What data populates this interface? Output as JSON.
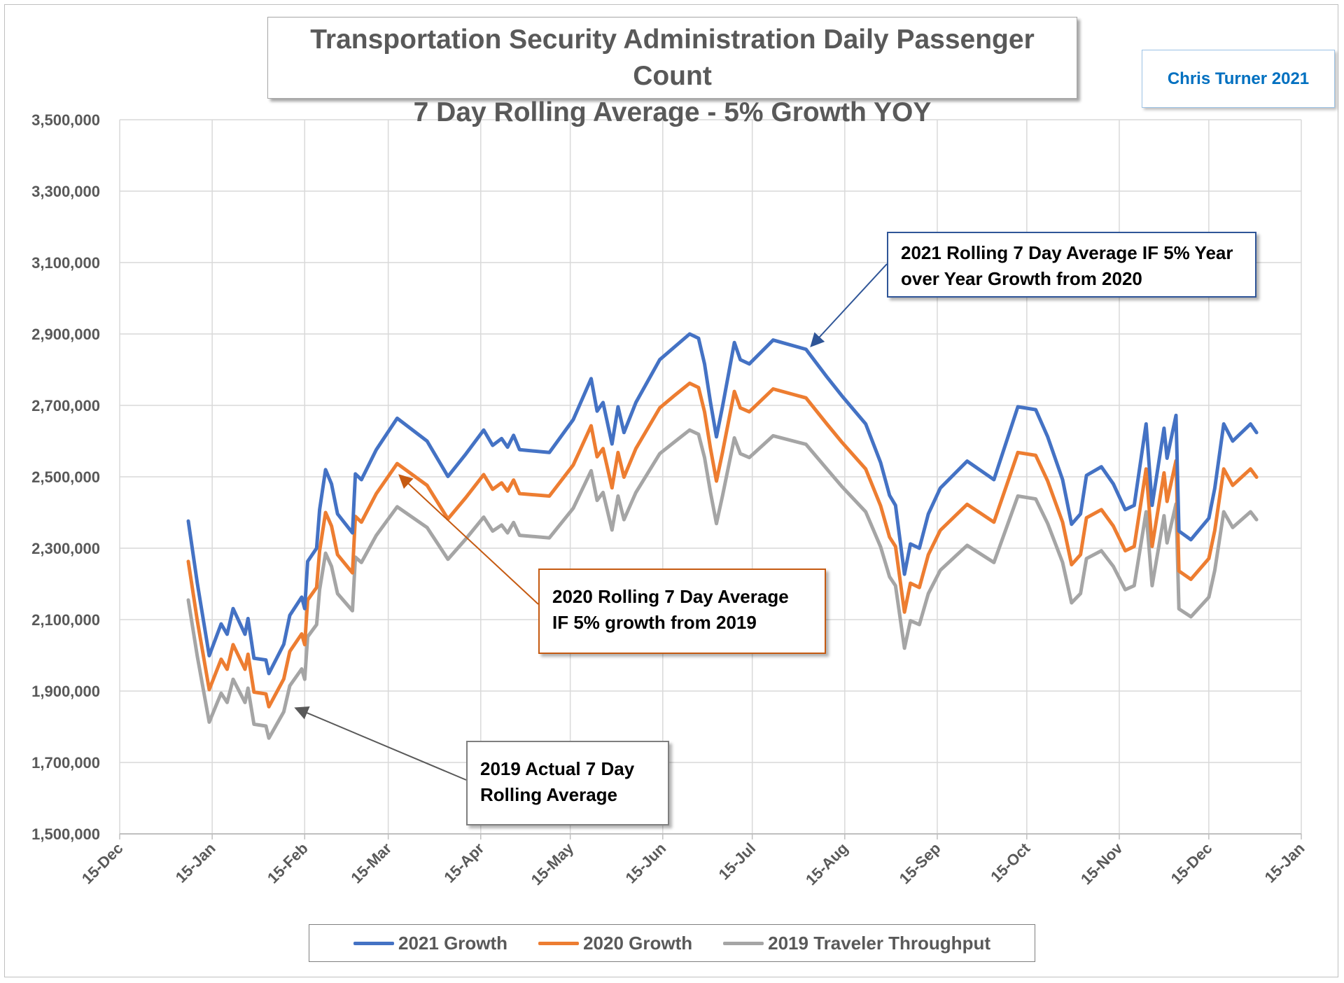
{
  "chart_data": {
    "type": "line",
    "title": "Transportation Security Administration Daily Passenger Count",
    "subtitle": "7 Day Rolling Average - 5% Growth YOY",
    "author_label": "Chris Turner 2021",
    "xlabel": "",
    "ylabel": "",
    "xlim": [
      "2020-12-15",
      "2022-01-15"
    ],
    "ylim": [
      1500000,
      3500000
    ],
    "y_ticks": [
      1500000,
      1700000,
      1900000,
      2100000,
      2300000,
      2500000,
      2700000,
      2900000,
      3100000,
      3300000,
      3500000
    ],
    "y_tick_labels": [
      "1,500,000",
      "1,700,000",
      "1,900,000",
      "2,100,000",
      "2,300,000",
      "2,500,000",
      "2,700,000",
      "2,900,000",
      "3,100,000",
      "3,300,000",
      "3,500,000"
    ],
    "x_ticks": [
      "2020-12-15",
      "2021-01-15",
      "2021-02-15",
      "2021-03-15",
      "2021-04-15",
      "2021-05-15",
      "2021-06-15",
      "2021-07-15",
      "2021-08-15",
      "2021-09-15",
      "2021-10-15",
      "2021-11-15",
      "2021-12-15",
      "2022-01-15"
    ],
    "x_tick_labels": [
      "15-Dec",
      "15-Jan",
      "15-Feb",
      "15-Mar",
      "15-Apr",
      "15-May",
      "15-Jun",
      "15-Jul",
      "15-Aug",
      "15-Sep",
      "15-Oct",
      "15-Nov",
      "15-Dec",
      "15-Jan"
    ],
    "grid": true,
    "legend_position": "bottom",
    "x": [
      "2021-01-07",
      "2021-01-10",
      "2021-01-14",
      "2021-01-18",
      "2021-01-20",
      "2021-01-22",
      "2021-01-26",
      "2021-01-27",
      "2021-01-29",
      "2021-02-02",
      "2021-02-03",
      "2021-02-08",
      "2021-02-10",
      "2021-02-14",
      "2021-02-15",
      "2021-02-16",
      "2021-02-19",
      "2021-02-20",
      "2021-02-22",
      "2021-02-24",
      "2021-02-26",
      "2021-03-03",
      "2021-03-04",
      "2021-03-06",
      "2021-03-11",
      "2021-03-18",
      "2021-03-28",
      "2021-04-04",
      "2021-04-10",
      "2021-04-16",
      "2021-04-19",
      "2021-04-22",
      "2021-04-24",
      "2021-04-26",
      "2021-04-28",
      "2021-05-08",
      "2021-05-16",
      "2021-05-22",
      "2021-05-24",
      "2021-05-26",
      "2021-05-29",
      "2021-05-31",
      "2021-06-02",
      "2021-06-06",
      "2021-06-14",
      "2021-06-19",
      "2021-06-24",
      "2021-06-27",
      "2021-06-29",
      "2021-07-01",
      "2021-07-03",
      "2021-07-05",
      "2021-07-09",
      "2021-07-11",
      "2021-07-14",
      "2021-07-22",
      "2021-08-02",
      "2021-08-09",
      "2021-08-14",
      "2021-08-22",
      "2021-08-27",
      "2021-08-30",
      "2021-09-01",
      "2021-09-04",
      "2021-09-06",
      "2021-09-09",
      "2021-09-12",
      "2021-09-16",
      "2021-09-25",
      "2021-10-04",
      "2021-10-12",
      "2021-10-18",
      "2021-10-22",
      "2021-10-27",
      "2021-10-30",
      "2021-11-02",
      "2021-11-04",
      "2021-11-09",
      "2021-11-13",
      "2021-11-17",
      "2021-11-20",
      "2021-11-24",
      "2021-11-26",
      "2021-11-30",
      "2021-12-01",
      "2021-12-04",
      "2021-12-05",
      "2021-12-09",
      "2021-12-15",
      "2021-12-17",
      "2021-12-20",
      "2021-12-23",
      "2021-12-29",
      "2021-12-31"
    ],
    "series": [
      {
        "name": "2021 Growth",
        "color": "#4472c4",
        "values": [
          2376000,
          2203000,
          1999000,
          2088000,
          2059000,
          2131000,
          2059000,
          2103000,
          1992000,
          1987000,
          1949000,
          2031000,
          2112000,
          2163000,
          2131000,
          2263000,
          2300000,
          2408000,
          2520000,
          2480000,
          2396000,
          2343000,
          2508000,
          2492000,
          2576000,
          2664000,
          2600000,
          2501000,
          2564000,
          2631000,
          2588000,
          2607000,
          2583000,
          2616000,
          2576000,
          2568000,
          2660000,
          2775000,
          2684000,
          2708000,
          2592000,
          2696000,
          2624000,
          2708000,
          2828000,
          2864000,
          2900000,
          2888000,
          2816000,
          2708000,
          2612000,
          2696000,
          2876000,
          2828000,
          2816000,
          2883000,
          2857000,
          2780000,
          2727000,
          2648000,
          2540000,
          2448000,
          2420000,
          2227000,
          2312000,
          2300000,
          2396000,
          2468000,
          2544000,
          2492000,
          2696000,
          2688000,
          2612000,
          2492000,
          2367000,
          2396000,
          2504000,
          2528000,
          2480000,
          2408000,
          2420000,
          2648000,
          2420000,
          2636000,
          2552000,
          2672000,
          2348000,
          2324000,
          2384000,
          2468000,
          2648000,
          2600000,
          2648000,
          2624000
        ]
      },
      {
        "name": "2020 Growth",
        "color": "#ed7d31",
        "values": [
          2263000,
          2098000,
          1904000,
          1989000,
          1961000,
          2030000,
          1961000,
          2003000,
          1897000,
          1892000,
          1856000,
          1934000,
          2011000,
          2060000,
          2030000,
          2155000,
          2190000,
          2293000,
          2400000,
          2362000,
          2282000,
          2231000,
          2389000,
          2373000,
          2453000,
          2537000,
          2476000,
          2382000,
          2442000,
          2506000,
          2465000,
          2483000,
          2460000,
          2491000,
          2453000,
          2446000,
          2533000,
          2643000,
          2556000,
          2579000,
          2469000,
          2568000,
          2499000,
          2579000,
          2693000,
          2728000,
          2762000,
          2750000,
          2682000,
          2579000,
          2488000,
          2568000,
          2739000,
          2693000,
          2682000,
          2746000,
          2721000,
          2648000,
          2597000,
          2522000,
          2419000,
          2331000,
          2305000,
          2121000,
          2202000,
          2190000,
          2282000,
          2350000,
          2423000,
          2373000,
          2568000,
          2560000,
          2488000,
          2373000,
          2254000,
          2282000,
          2385000,
          2408000,
          2362000,
          2293000,
          2305000,
          2522000,
          2305000,
          2511000,
          2431000,
          2545000,
          2236000,
          2213000,
          2271000,
          2350000,
          2522000,
          2476000,
          2522000,
          2499000
        ]
      },
      {
        "name": "2019 Traveler Throughput",
        "color": "#a5a5a5",
        "values": [
          2155000,
          1998000,
          1813000,
          1894000,
          1868000,
          1933000,
          1868000,
          1908000,
          1807000,
          1802000,
          1768000,
          1842000,
          1915000,
          1962000,
          1933000,
          2052000,
          2086000,
          2184000,
          2286000,
          2249000,
          2173000,
          2125000,
          2275000,
          2260000,
          2336000,
          2416000,
          2358000,
          2269000,
          2326000,
          2387000,
          2348000,
          2365000,
          2343000,
          2372000,
          2336000,
          2329000,
          2412000,
          2517000,
          2434000,
          2456000,
          2351000,
          2446000,
          2380000,
          2456000,
          2565000,
          2598000,
          2631000,
          2619000,
          2554000,
          2456000,
          2369000,
          2446000,
          2609000,
          2565000,
          2554000,
          2615000,
          2591000,
          2522000,
          2473000,
          2402000,
          2304000,
          2220000,
          2195000,
          2020000,
          2097000,
          2086000,
          2173000,
          2238000,
          2308000,
          2260000,
          2446000,
          2438000,
          2369000,
          2260000,
          2147000,
          2173000,
          2271000,
          2293000,
          2249000,
          2184000,
          2195000,
          2402000,
          2195000,
          2391000,
          2315000,
          2424000,
          2130000,
          2108000,
          2163000,
          2238000,
          2402000,
          2358000,
          2402000,
          2380000
        ]
      }
    ],
    "annotations": [
      {
        "text_line1": "2021 Rolling 7 Day Average IF 5% Year",
        "text_line2": "over Year Growth from 2020"
      },
      {
        "text_line1": "2020 Rolling 7 Day Average",
        "text_line2": "IF 5% growth from 2019"
      },
      {
        "text_line1": "2019 Actual 7 Day",
        "text_line2": "Rolling Average"
      }
    ]
  }
}
